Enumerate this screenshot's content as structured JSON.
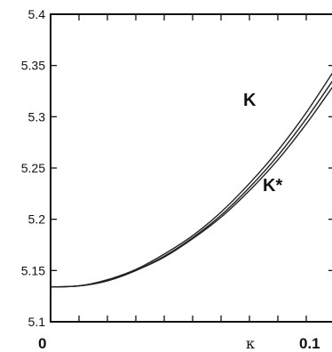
{
  "chart_data": {
    "type": "line",
    "title": "",
    "xlabel": "κ",
    "ylabel": "",
    "xlim": [
      0,
      0.1
    ],
    "ylim": [
      5.1,
      5.4
    ],
    "x_tick_labels": [
      "0",
      "0.1"
    ],
    "y_ticks": [
      5.1,
      5.15,
      5.2,
      5.25,
      5.3,
      5.35,
      5.4
    ],
    "y_tick_labels": [
      "5.1",
      "5.15",
      "5.2",
      "5.25",
      "5.3",
      "5.35",
      "5.4"
    ],
    "grid": false,
    "series": [
      {
        "name": "K",
        "x": [
          0,
          0.01,
          0.02,
          0.03,
          0.04,
          0.05,
          0.06,
          0.07,
          0.08,
          0.09,
          0.1
        ],
        "values": [
          5.134,
          5.135,
          5.141,
          5.151,
          5.166,
          5.184,
          5.207,
          5.235,
          5.267,
          5.304,
          5.346
        ]
      },
      {
        "name": "K*",
        "x": [
          0,
          0.01,
          0.02,
          0.03,
          0.04,
          0.05,
          0.06,
          0.07,
          0.08,
          0.09,
          0.1
        ],
        "values": [
          5.134,
          5.135,
          5.14,
          5.15,
          5.164,
          5.182,
          5.204,
          5.231,
          5.262,
          5.298,
          5.338
        ]
      },
      {
        "name": "",
        "x": [
          0,
          0.01,
          0.02,
          0.03,
          0.04,
          0.05,
          0.06,
          0.07,
          0.08,
          0.09,
          0.1
        ],
        "values": [
          5.134,
          5.135,
          5.14,
          5.15,
          5.163,
          5.181,
          5.202,
          5.228,
          5.258,
          5.293,
          5.332
        ]
      }
    ],
    "annotations": [
      "K",
      "K*"
    ]
  }
}
